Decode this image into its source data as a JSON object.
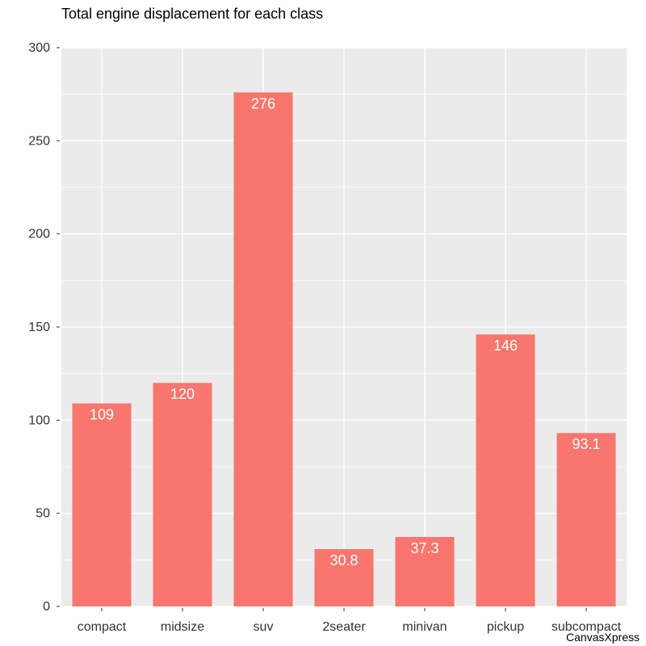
{
  "chart_data": {
    "type": "bar",
    "title": "Total engine displacement for each class",
    "xlabel": "",
    "ylabel": "",
    "categories": [
      "compact",
      "midsize",
      "suv",
      "2seater",
      "minivan",
      "pickup",
      "subcompact"
    ],
    "values": [
      109,
      120,
      276,
      30.8,
      37.3,
      146,
      93.1
    ],
    "value_labels": [
      "109",
      "120",
      "276",
      "30.8",
      "37.3",
      "146",
      "93.1"
    ],
    "ylim": [
      0,
      300
    ],
    "yticks": [
      0,
      50,
      100,
      150,
      200,
      250,
      300
    ],
    "grid": true,
    "legend": "none",
    "colors": {
      "bar": "#F8766D",
      "panel": "#EBEBEB",
      "grid": "#FFFFFF"
    }
  },
  "credit": "CanvasXpress"
}
